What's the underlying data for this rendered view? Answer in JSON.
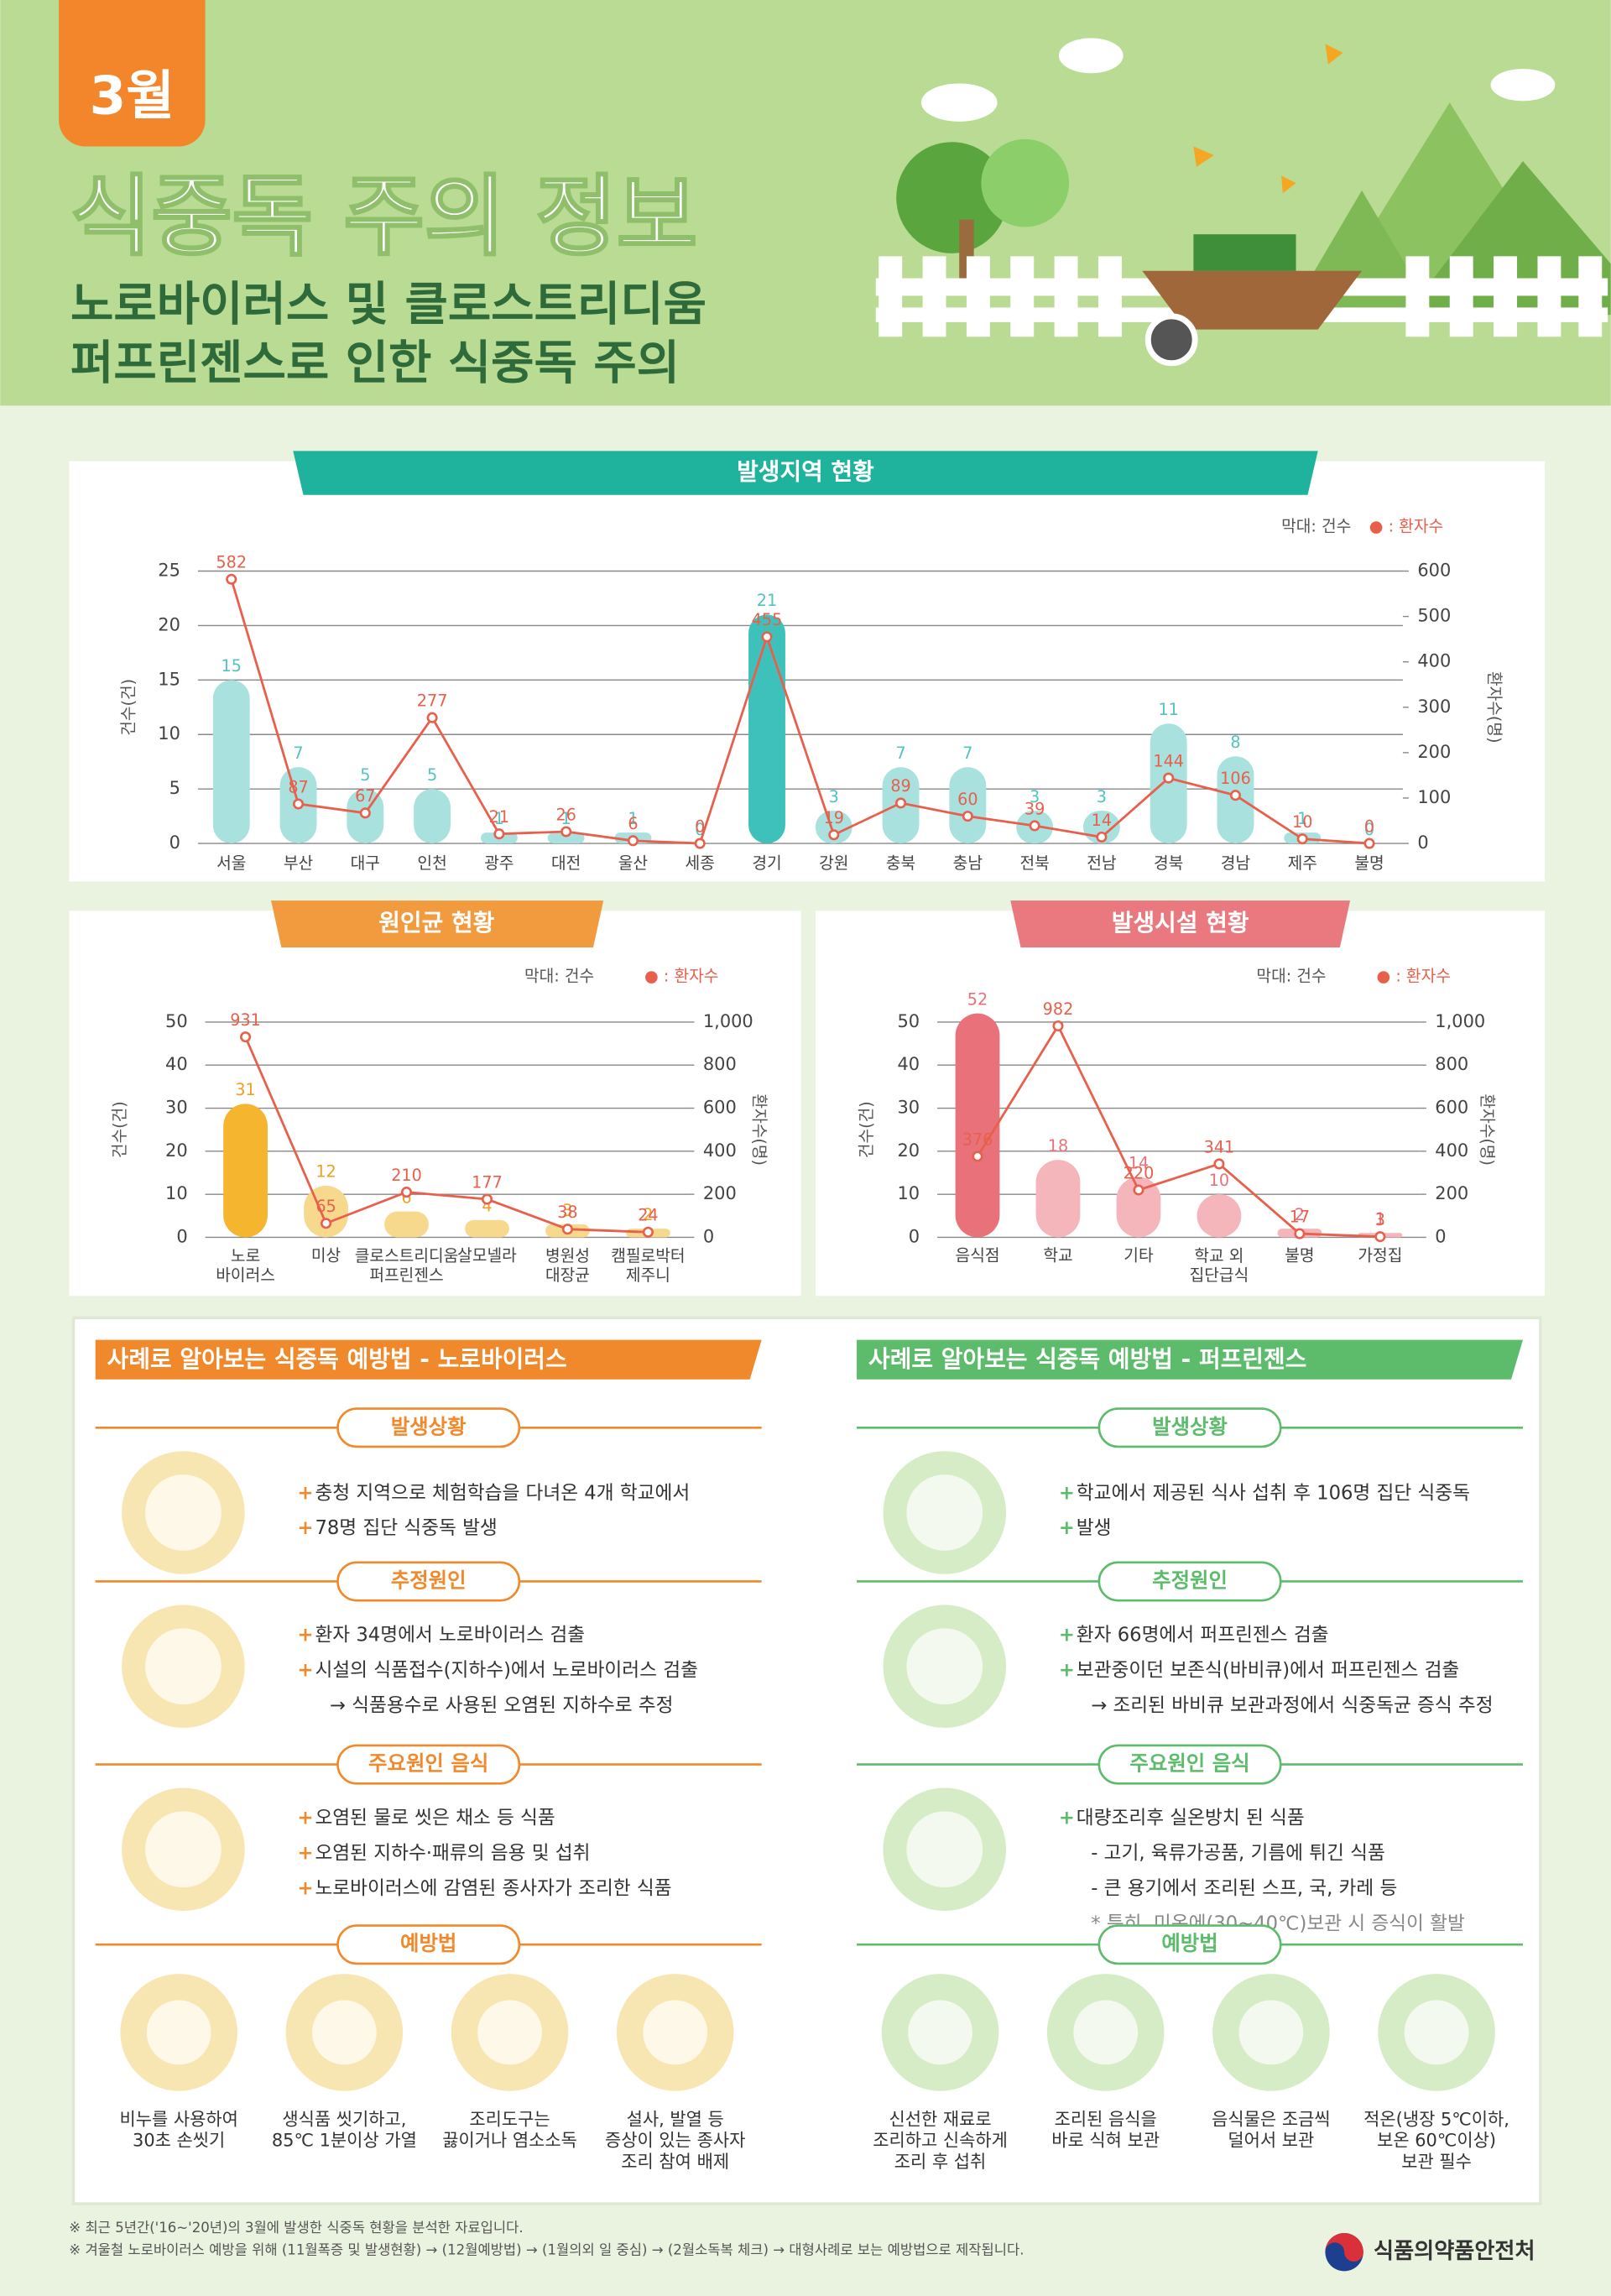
{
  "header": {
    "month": "3월",
    "title": "식중독 주의 정보",
    "subtitle": [
      "노로바이러스 및 클로스트리디움",
      "퍼프린젠스로 인한 식중독 주의"
    ]
  },
  "chart_data": [
    {
      "type": "bar_line",
      "title": "발생지역 현황",
      "legend": [
        "막대: 건수",
        "● : 환자수"
      ],
      "ylabel": "건수(건)",
      "y2label": "환자수(명)",
      "categories": [
        "서울",
        "부산",
        "대구",
        "인천",
        "광주",
        "대전",
        "울산",
        "세종",
        "경기",
        "강원",
        "충북",
        "충남",
        "전북",
        "전남",
        "경북",
        "경남",
        "제주",
        "불명"
      ],
      "series": [
        {
          "type": "bar",
          "color": "#a9e1df",
          "colors": [
            "#a9e1df",
            "#a9e1df",
            "#a9e1df",
            "#a9e1df",
            "#a9e1df",
            "#a9e1df",
            "#a9e1df",
            "#a9e1df",
            "#3fc1bb",
            "#a9e1df",
            "#a9e1df",
            "#a9e1df",
            "#a9e1df",
            "#a9e1df",
            "#a9e1df",
            "#a9e1df",
            "#a9e1df",
            "#a9e1df"
          ],
          "label_color": "#52c3c0",
          "values": [
            15,
            7,
            5,
            5,
            1,
            1,
            1,
            0,
            21,
            3,
            7,
            7,
            3,
            3,
            11,
            8,
            1,
            0
          ]
        },
        {
          "type": "line",
          "axis": "y2",
          "color": "#e8604c",
          "label_color": "#e8604c",
          "values": [
            582,
            87,
            67,
            277,
            21,
            26,
            6,
            0,
            455,
            19,
            89,
            60,
            39,
            14,
            144,
            106,
            10,
            0
          ]
        }
      ],
      "ylim": [
        0,
        25
      ],
      "yticks": [
        0,
        5,
        10,
        15,
        20,
        25
      ],
      "y2lim": [
        0,
        600
      ],
      "y2ticks": [
        0,
        100,
        200,
        300,
        400,
        500,
        600
      ],
      "grid": true
    },
    {
      "type": "bar_line",
      "title": "원인균 현황",
      "legend": [
        "막대: 건수",
        "● : 환자수"
      ],
      "ylabel": "건수(건)",
      "y2label": "환자수(명)",
      "categories": [
        "노로\n바이러스",
        "미상",
        "클로스트리디움\n퍼프린젠스",
        "살모넬라",
        "병원성\n대장균",
        "캠필로박터\n제주니"
      ],
      "series": [
        {
          "type": "bar",
          "color": "#f7d98e",
          "colors": [
            "#f5b52e",
            "#f7d98e",
            "#f7d98e",
            "#f7d98e",
            "#f7d98e",
            "#f7d98e"
          ],
          "label_color": "#f0a020",
          "values": [
            31,
            12,
            6,
            4,
            3,
            2
          ]
        },
        {
          "type": "line",
          "axis": "y2",
          "color": "#e8604c",
          "label_color": "#e8604c",
          "values": [
            931,
            65,
            210,
            177,
            38,
            24
          ]
        }
      ],
      "ylim": [
        0,
        50
      ],
      "yticks": [
        0,
        10,
        20,
        30,
        40,
        50
      ],
      "y2lim": [
        0,
        1000
      ],
      "y2ticks": [
        0,
        200,
        400,
        600,
        800,
        {
          "value": 1000,
          "label": "1,000"
        }
      ],
      "grid": true
    },
    {
      "type": "bar_line",
      "title": "발생시설 현황",
      "legend": [
        "막대: 건수",
        "● : 환자수"
      ],
      "ylabel": "건수(건)",
      "y2label": "환자수(명)",
      "categories": [
        "음식점",
        "학교",
        "기타",
        "학교 외\n집단급식",
        "불명",
        "가정집"
      ],
      "series": [
        {
          "type": "bar",
          "color": "#f4b6bb",
          "colors": [
            "#e8717a",
            "#f4b6bb",
            "#f4b6bb",
            "#f4b6bb",
            "#f4b6bb",
            "#f4b6bb"
          ],
          "label_color": "#e8717a",
          "values": [
            52,
            18,
            14,
            10,
            2,
            1
          ]
        },
        {
          "type": "line",
          "axis": "y2",
          "color": "#e8604c",
          "label_color": "#e8604c",
          "values": [
            376,
            982,
            220,
            341,
            17,
            3
          ]
        }
      ],
      "ylim": [
        0,
        50
      ],
      "yticks": [
        0,
        10,
        20,
        30,
        40,
        50
      ],
      "y2lim": [
        0,
        1000
      ],
      "y2ticks": [
        0,
        200,
        400,
        600,
        800,
        {
          "value": 1000,
          "label": "1,000"
        }
      ],
      "grid": true
    }
  ],
  "prevention": [
    {
      "title": "사례로 알아보는 식중독 예방법 - 노로바이러스",
      "color": "#f0892c",
      "sections": [
        {
          "heading": "발생상황",
          "lines": [
            "충청 지역으로 체험학습을 다녀온 4개 학교에서",
            "78명 집단 식중독 발생"
          ]
        },
        {
          "heading": "추정원인",
          "lines": [
            "환자 34명에서 노로바이러스 검출",
            "시설의 식품접수(지하수)에서 노로바이러스 검출",
            "→ 식품용수로 사용된 오염된 지하수로 추정"
          ]
        },
        {
          "heading": "주요원인 음식",
          "lines": [
            "오염된 물로 씻은 채소 등 식품",
            "오염된 지하수·패류의 음용 및 섭취",
            "노로바이러스에 감염된 종사자가 조리한 식품"
          ]
        }
      ],
      "tips_heading": "예방법",
      "tips": [
        "비누를 사용하여\n30초 손씻기",
        "생식품 씻기하고,\n85℃ 1분이상 가열",
        "조리도구는\n끓이거나 염소소독",
        "설사, 발열 등\n증상이 있는 종사자\n조리 참여 배제"
      ]
    },
    {
      "title": "사례로 알아보는 식중독 예방법 - 퍼프린젠스",
      "color": "#5dbb6c",
      "sections": [
        {
          "heading": "발생상황",
          "lines": [
            "학교에서 제공된 식사 섭취 후 106명 집단 식중독",
            "발생"
          ]
        },
        {
          "heading": "추정원인",
          "lines": [
            "환자 66명에서 퍼프린젠스 검출",
            "보관중이던 보존식(바비큐)에서 퍼프린젠스 검출",
            "→ 조리된 바비큐 보관과정에서 식중독균 증식 추정"
          ]
        },
        {
          "heading": "주요원인 음식",
          "lines": [
            "대량조리후 실온방치 된 식품",
            "- 고기, 육류가공품, 기름에 튀긴 식품",
            "- 큰 용기에서 조리된 스프, 국, 카레 등",
            "* 특히, 미온에(30~40℃)보관 시 증식이 활발"
          ]
        }
      ],
      "tips_heading": "예방법",
      "tips": [
        "신선한 재료로\n조리하고 신속하게\n조리 후 섭취",
        "조리된 음식을\n바로 식혀 보관",
        "음식물은 조금씩\n덜어서 보관",
        "적온(냉장 5℃이하,\n보온 60℃이상)\n보관 필수"
      ]
    }
  ],
  "footer": {
    "notes": [
      "※ 최근 5년간('16~'20년)의 3월에 발생한 식중독 현황을 분석한 자료입니다.",
      "※ 겨울철 노로바이러스 예방을 위해 (11월폭증 및 발생현황) → (12월예방법) → (1월의외 일 중심) → (2월소독복 체크) → 대형사례로 보는 예방법으로 제작됩니다."
    ],
    "agency": "식품의약품안전처"
  }
}
